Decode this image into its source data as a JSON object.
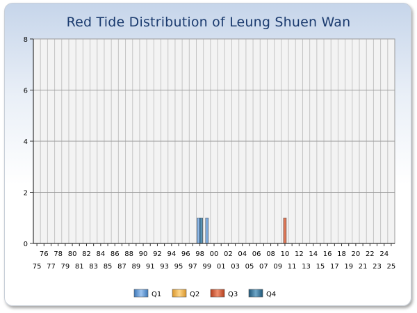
{
  "chart_data": {
    "type": "bar",
    "title": "Red Tide Distribution of Leung Shuen Wan",
    "categories": [
      "75",
      "76",
      "77",
      "78",
      "79",
      "80",
      "81",
      "82",
      "83",
      "84",
      "85",
      "86",
      "87",
      "88",
      "89",
      "90",
      "91",
      "92",
      "93",
      "94",
      "95",
      "96",
      "97",
      "98",
      "99",
      "00",
      "01",
      "02",
      "03",
      "04",
      "05",
      "06",
      "07",
      "08",
      "09",
      "10",
      "11",
      "12",
      "13",
      "14",
      "15",
      "16",
      "17",
      "18",
      "19",
      "20",
      "21",
      "22",
      "23",
      "24",
      "25"
    ],
    "y_ticks": [
      "0",
      "2",
      "4",
      "6",
      "8"
    ],
    "ylim": [
      0,
      8
    ],
    "grid": true,
    "legend_position": "bottom",
    "series": [
      {
        "name": "Q1",
        "color": "#5b9bd5",
        "values": {
          "98": 1,
          "99": 1
        }
      },
      {
        "name": "Q2",
        "color": "#f7b548",
        "values": {}
      },
      {
        "name": "Q3",
        "color": "#d9552f",
        "values": {
          "10": 1
        }
      },
      {
        "name": "Q4",
        "color": "#2f6f93",
        "values": {
          "98": 1
        }
      }
    ]
  }
}
